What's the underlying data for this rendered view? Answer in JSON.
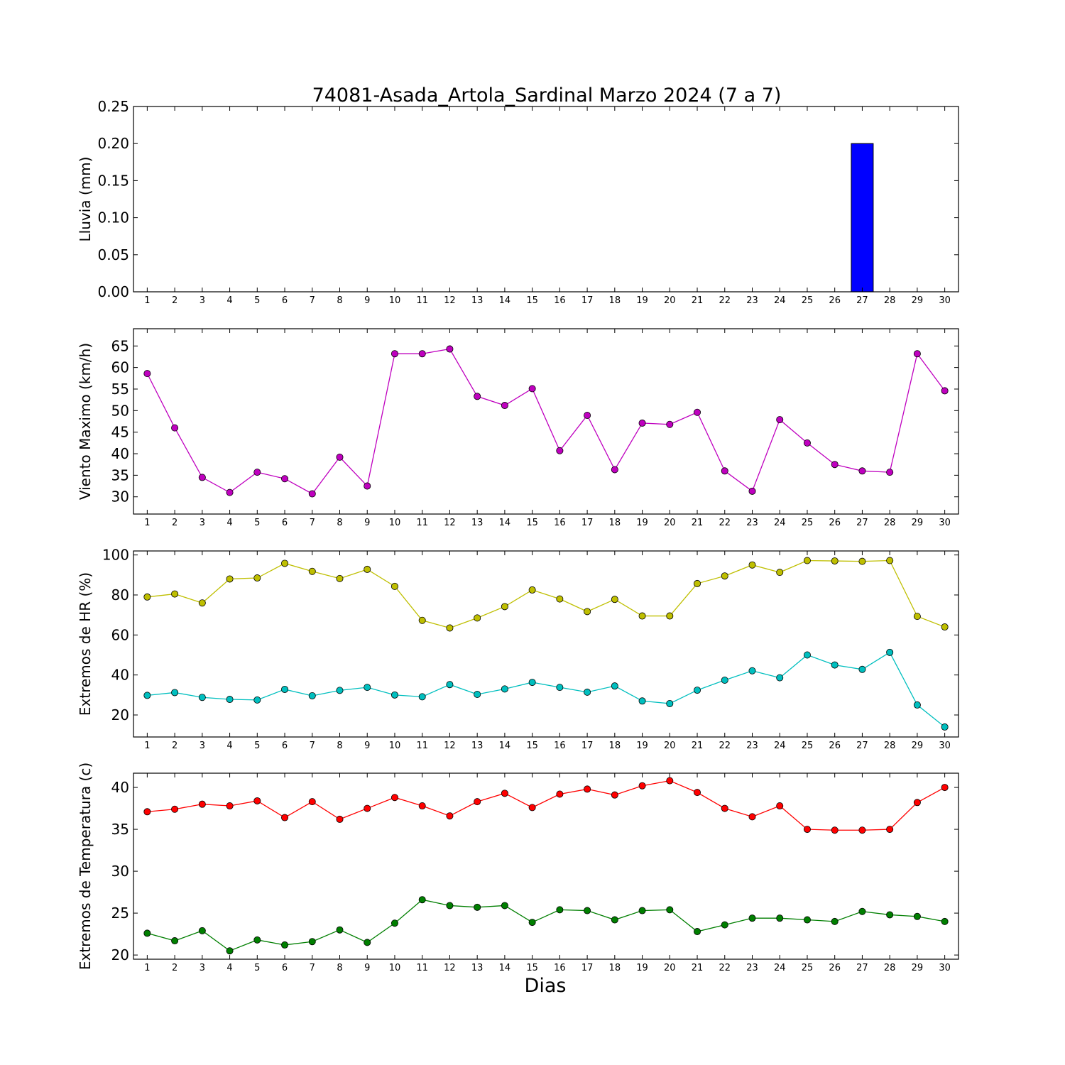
{
  "title": "74081-Asada_Artola_Sardinal Marzo 2024  (7 a 7)",
  "chart_data": [
    {
      "type": "bar",
      "ylabel": "Lluvia (mm)",
      "xlabel": "",
      "ylim": [
        0,
        0.25
      ],
      "yticks": [
        "0.00",
        "0.05",
        "0.10",
        "0.15",
        "0.20",
        "0.25"
      ],
      "categories": [
        1,
        2,
        3,
        4,
        5,
        6,
        7,
        8,
        9,
        10,
        11,
        12,
        13,
        14,
        15,
        16,
        17,
        18,
        19,
        20,
        21,
        22,
        23,
        24,
        25,
        26,
        27,
        28,
        29,
        30
      ],
      "values": [
        0,
        0,
        0,
        0,
        0,
        0,
        0,
        0,
        0,
        0,
        0,
        0,
        0,
        0,
        0,
        0,
        0,
        0,
        0,
        0,
        0,
        0,
        0,
        0,
        0,
        0,
        0.2,
        0,
        0,
        0
      ],
      "color": "#0000ff"
    },
    {
      "type": "line",
      "ylabel": "Viento Maximo (km/h)",
      "xlabel": "",
      "ylim": [
        26,
        69
      ],
      "yticks": [
        "30",
        "35",
        "40",
        "45",
        "50",
        "55",
        "60",
        "65"
      ],
      "x": [
        1,
        2,
        3,
        4,
        5,
        6,
        7,
        8,
        9,
        10,
        11,
        12,
        13,
        14,
        15,
        16,
        17,
        18,
        19,
        20,
        21,
        22,
        23,
        24,
        25,
        26,
        27,
        28,
        29,
        30
      ],
      "series": [
        {
          "values": [
            58.6,
            46.0,
            34.5,
            31.0,
            35.7,
            34.2,
            30.7,
            39.2,
            32.5,
            63.2,
            63.2,
            64.3,
            53.3,
            51.2,
            55.1,
            40.7,
            48.9,
            36.3,
            47.1,
            46.8,
            49.6,
            36.0,
            31.3,
            47.9,
            42.5,
            37.5,
            36.0,
            35.7,
            63.2,
            54.6
          ],
          "color": "#bf00bf"
        }
      ]
    },
    {
      "type": "line",
      "ylabel": "Extremos de HR (%)",
      "xlabel": "",
      "ylim": [
        9,
        102
      ],
      "yticks": [
        "20",
        "40",
        "60",
        "80",
        "100"
      ],
      "x": [
        1,
        2,
        3,
        4,
        5,
        6,
        7,
        8,
        9,
        10,
        11,
        12,
        13,
        14,
        15,
        16,
        17,
        18,
        19,
        20,
        21,
        22,
        23,
        24,
        25,
        26,
        27,
        28,
        29,
        30
      ],
      "series": [
        {
          "values": [
            79,
            80.5,
            76,
            88,
            88.5,
            95.8,
            91.8,
            88.2,
            92.8,
            84.3,
            67.3,
            63.5,
            68.5,
            74.2,
            82.5,
            78,
            71.7,
            77.8,
            69.5,
            69.5,
            85.7,
            89.5,
            95,
            91.3,
            97.2,
            97,
            96.8,
            97.2,
            69.3,
            64
          ],
          "color": "#bfbf00"
        },
        {
          "values": [
            29.8,
            31.2,
            28.8,
            27.8,
            27.5,
            32.8,
            29.6,
            32.3,
            33.8,
            30,
            29.1,
            35.2,
            30.3,
            33,
            36.3,
            33.8,
            31.4,
            34.5,
            27,
            25.7,
            32.4,
            37.4,
            42.1,
            38.6,
            50,
            45,
            42.8,
            51.3,
            25,
            14
          ],
          "color": "#00bfbf"
        }
      ]
    },
    {
      "type": "line",
      "ylabel": "Extremos de Temperatura (c)",
      "xlabel": "Dias",
      "ylim": [
        19.5,
        41.7
      ],
      "yticks": [
        "20",
        "25",
        "30",
        "35",
        "40"
      ],
      "x": [
        1,
        2,
        3,
        4,
        5,
        6,
        7,
        8,
        9,
        10,
        11,
        12,
        13,
        14,
        15,
        16,
        17,
        18,
        19,
        20,
        21,
        22,
        23,
        24,
        25,
        26,
        27,
        28,
        29,
        30
      ],
      "series": [
        {
          "values": [
            37.1,
            37.4,
            38,
            37.8,
            38.4,
            36.4,
            38.3,
            36.2,
            37.5,
            38.8,
            37.8,
            36.6,
            38.3,
            39.3,
            37.6,
            39.2,
            39.8,
            39.1,
            40.2,
            40.8,
            39.4,
            37.5,
            36.5,
            37.8,
            35,
            34.9,
            34.9,
            35,
            38.2,
            40
          ],
          "color": "#ff0000"
        },
        {
          "values": [
            22.6,
            21.7,
            22.9,
            20.5,
            21.8,
            21.2,
            21.6,
            23,
            21.5,
            23.8,
            26.6,
            25.9,
            25.7,
            25.9,
            23.9,
            25.4,
            25.3,
            24.2,
            25.3,
            25.4,
            22.8,
            23.6,
            24.4,
            24.4,
            24.2,
            24,
            25.2,
            24.8,
            24.6,
            24
          ],
          "color": "#007f00"
        }
      ]
    }
  ]
}
